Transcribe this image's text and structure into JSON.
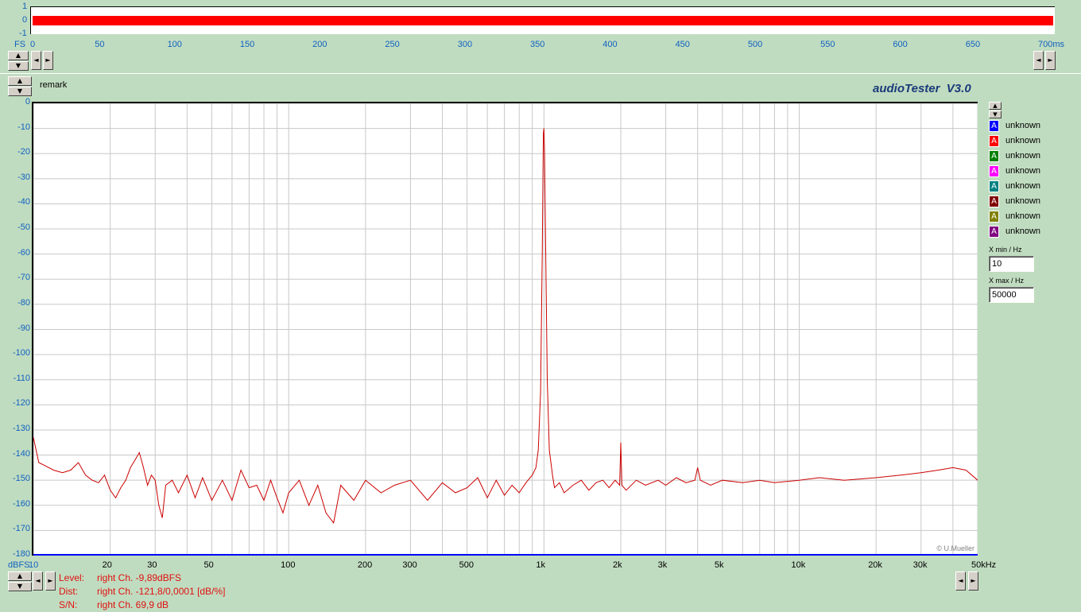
{
  "header": {
    "remark_label": "remark",
    "app_title": "audioTester  V3.0"
  },
  "time_panel": {
    "y_labels": [
      "1",
      "0",
      "-1"
    ],
    "fs_label": "FS",
    "x_ticks": [
      "0",
      "50",
      "100",
      "150",
      "200",
      "250",
      "300",
      "350",
      "400",
      "450",
      "500",
      "550",
      "600",
      "650",
      "700ms"
    ],
    "waveform_color": "#ff0000"
  },
  "chart_data": {
    "type": "line",
    "title": "",
    "xlabel": "",
    "ylabel": "dBFS",
    "x_scale": "log",
    "xlim": [
      10,
      50000
    ],
    "ylim": [
      -180,
      0
    ],
    "x_ticks": [
      10,
      20,
      30,
      50,
      100,
      200,
      300,
      500,
      1000,
      2000,
      3000,
      5000,
      10000,
      20000,
      30000,
      50000
    ],
    "x_tick_labels": [
      "10",
      "20",
      "30",
      "50",
      "100",
      "200",
      "300",
      "500",
      "1k",
      "2k",
      "3k",
      "5k",
      "10k",
      "20k",
      "30k",
      "50kHz"
    ],
    "y_ticks": [
      0,
      -10,
      -20,
      -30,
      -40,
      -50,
      -60,
      -70,
      -80,
      -90,
      -100,
      -110,
      -120,
      -130,
      -140,
      -150,
      -160,
      -170,
      -180
    ],
    "y_tick_labels": [
      "0",
      "-10",
      "-20",
      "-30",
      "-40",
      "-50",
      "-60",
      "-70",
      "-80",
      "-90",
      "-100",
      "-110",
      "-120",
      "-130",
      "-140",
      "-150",
      "-160",
      "-170",
      "-180"
    ],
    "y_axis_name": "dBFS",
    "grid": true,
    "watermark": "© U.Mueller",
    "series": [
      {
        "color": "#cc0000",
        "points": [
          [
            10,
            -133
          ],
          [
            10.5,
            -143
          ],
          [
            11,
            -144
          ],
          [
            12,
            -146
          ],
          [
            13,
            -147
          ],
          [
            14,
            -146
          ],
          [
            15,
            -143
          ],
          [
            16,
            -148
          ],
          [
            17,
            -150
          ],
          [
            18,
            -151
          ],
          [
            19,
            -148
          ],
          [
            20,
            -154
          ],
          [
            21,
            -157
          ],
          [
            22,
            -153
          ],
          [
            23,
            -150
          ],
          [
            24,
            -145
          ],
          [
            25,
            -142
          ],
          [
            26,
            -139
          ],
          [
            27,
            -145
          ],
          [
            28,
            -152
          ],
          [
            29,
            -148
          ],
          [
            30,
            -150
          ],
          [
            31,
            -160
          ],
          [
            32,
            -165
          ],
          [
            33,
            -152
          ],
          [
            35,
            -150
          ],
          [
            37,
            -155
          ],
          [
            40,
            -148
          ],
          [
            43,
            -157
          ],
          [
            46,
            -149
          ],
          [
            50,
            -158
          ],
          [
            55,
            -150
          ],
          [
            60,
            -158
          ],
          [
            65,
            -146
          ],
          [
            70,
            -153
          ],
          [
            75,
            -152
          ],
          [
            80,
            -158
          ],
          [
            85,
            -150
          ],
          [
            90,
            -157
          ],
          [
            95,
            -163
          ],
          [
            100,
            -155
          ],
          [
            110,
            -150
          ],
          [
            120,
            -160
          ],
          [
            130,
            -152
          ],
          [
            140,
            -163
          ],
          [
            150,
            -167
          ],
          [
            160,
            -152
          ],
          [
            180,
            -158
          ],
          [
            200,
            -150
          ],
          [
            230,
            -155
          ],
          [
            260,
            -152
          ],
          [
            300,
            -150
          ],
          [
            350,
            -158
          ],
          [
            400,
            -151
          ],
          [
            450,
            -155
          ],
          [
            500,
            -153
          ],
          [
            550,
            -149
          ],
          [
            600,
            -157
          ],
          [
            650,
            -150
          ],
          [
            700,
            -156
          ],
          [
            750,
            -152
          ],
          [
            800,
            -155
          ],
          [
            850,
            -151
          ],
          [
            900,
            -148
          ],
          [
            930,
            -145
          ],
          [
            950,
            -138
          ],
          [
            970,
            -115
          ],
          [
            985,
            -60
          ],
          [
            995,
            -12
          ],
          [
            1000,
            -10
          ],
          [
            1005,
            -18
          ],
          [
            1015,
            -55
          ],
          [
            1030,
            -110
          ],
          [
            1050,
            -138
          ],
          [
            1080,
            -148
          ],
          [
            1100,
            -153
          ],
          [
            1150,
            -151
          ],
          [
            1200,
            -155
          ],
          [
            1300,
            -152
          ],
          [
            1400,
            -150
          ],
          [
            1500,
            -154
          ],
          [
            1600,
            -151
          ],
          [
            1700,
            -150
          ],
          [
            1800,
            -153
          ],
          [
            1900,
            -150
          ],
          [
            1980,
            -152
          ],
          [
            2000,
            -135
          ],
          [
            2020,
            -152
          ],
          [
            2100,
            -154
          ],
          [
            2300,
            -150
          ],
          [
            2500,
            -152
          ],
          [
            2800,
            -150
          ],
          [
            3000,
            -152
          ],
          [
            3300,
            -149
          ],
          [
            3600,
            -151
          ],
          [
            3900,
            -150
          ],
          [
            4000,
            -145
          ],
          [
            4100,
            -150
          ],
          [
            4500,
            -152
          ],
          [
            5000,
            -150
          ],
          [
            6000,
            -151
          ],
          [
            7000,
            -150
          ],
          [
            8000,
            -151
          ],
          [
            10000,
            -150
          ],
          [
            12000,
            -149
          ],
          [
            15000,
            -150
          ],
          [
            20000,
            -149
          ],
          [
            25000,
            -148
          ],
          [
            30000,
            -147
          ],
          [
            35000,
            -146
          ],
          [
            40000,
            -145
          ],
          [
            45000,
            -146
          ],
          [
            50000,
            -150
          ]
        ]
      }
    ]
  },
  "legend": {
    "items": [
      {
        "label": "unknown",
        "color": "#0000ff"
      },
      {
        "label": "unknown",
        "color": "#ff0000"
      },
      {
        "label": "unknown",
        "color": "#008000"
      },
      {
        "label": "unknown",
        "color": "#ff00ff"
      },
      {
        "label": "unknown",
        "color": "#008080"
      },
      {
        "label": "unknown",
        "color": "#800000"
      },
      {
        "label": "unknown",
        "color": "#808000"
      },
      {
        "label": "unknown",
        "color": "#800080"
      }
    ],
    "icon_glyph": "A",
    "xmin_label": "X min / Hz",
    "xmin_value": "10",
    "xmax_label": "X max / Hz",
    "xmax_value": "50000"
  },
  "measurements": {
    "level_label": "Level:",
    "level_value": "right Ch. -9,89dBFS",
    "dist_label": "Dist:",
    "dist_value": "right Ch. -121,8/0,0001 [dB/%]",
    "sn_label": "S/N:",
    "sn_value": "right Ch. 69,9 dB"
  },
  "controls": {
    "up_arrow": "▲",
    "down_arrow": "▼",
    "left_arrow": "◄",
    "right_arrow": "►"
  }
}
